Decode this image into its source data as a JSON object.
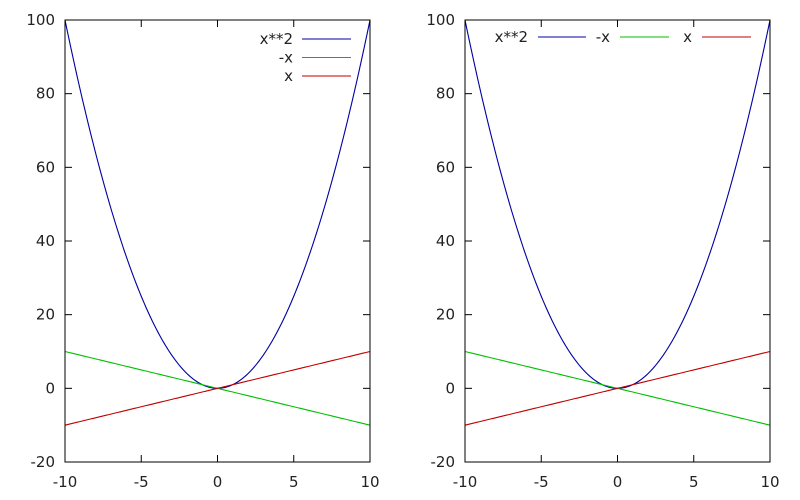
{
  "chart_data": [
    {
      "type": "line",
      "title": "",
      "xlabel": "",
      "ylabel": "",
      "xlim": [
        -10,
        10
      ],
      "ylim": [
        -20,
        100
      ],
      "xticks": [
        "-10",
        "-5",
        "0",
        "5",
        "10"
      ],
      "yticks": [
        "-20",
        "0",
        "20",
        "40",
        "60",
        "80",
        "100"
      ],
      "grid": false,
      "legend_position": "top-right, vertical",
      "series": [
        {
          "name": "x**2",
          "color": "#0000a0",
          "expr": "x*x",
          "x": [
            -10,
            -5,
            0,
            5,
            10
          ],
          "values": [
            100,
            25,
            0,
            25,
            100
          ]
        },
        {
          "name": "-x",
          "color": "#00c000",
          "expr": "-x",
          "x": [
            -10,
            -5,
            0,
            5,
            10
          ],
          "values": [
            10,
            5,
            0,
            -5,
            -10
          ]
        },
        {
          "name": "x",
          "color": "#c00000",
          "expr": "x",
          "x": [
            -10,
            -5,
            0,
            5,
            10
          ],
          "values": [
            -10,
            -5,
            0,
            5,
            10
          ]
        }
      ]
    },
    {
      "type": "line",
      "title": "",
      "xlabel": "",
      "ylabel": "",
      "xlim": [
        -10,
        10
      ],
      "ylim": [
        -20,
        100
      ],
      "xticks": [
        "-10",
        "-5",
        "0",
        "5",
        "10"
      ],
      "yticks": [
        "-20",
        "0",
        "20",
        "40",
        "60",
        "80",
        "100"
      ],
      "grid": false,
      "legend_position": "top, horizontal",
      "series": [
        {
          "name": "x**2",
          "color": "#0000a0",
          "expr": "x*x",
          "x": [
            -10,
            -5,
            0,
            5,
            10
          ],
          "values": [
            100,
            25,
            0,
            25,
            100
          ]
        },
        {
          "name": "-x",
          "color": "#00c000",
          "expr": "-x",
          "x": [
            -10,
            -5,
            0,
            5,
            10
          ],
          "values": [
            10,
            5,
            0,
            -5,
            -10
          ]
        },
        {
          "name": "x",
          "color": "#c00000",
          "expr": "x",
          "x": [
            -10,
            -5,
            0,
            5,
            10
          ],
          "values": [
            -10,
            -5,
            0,
            5,
            10
          ]
        }
      ]
    }
  ]
}
